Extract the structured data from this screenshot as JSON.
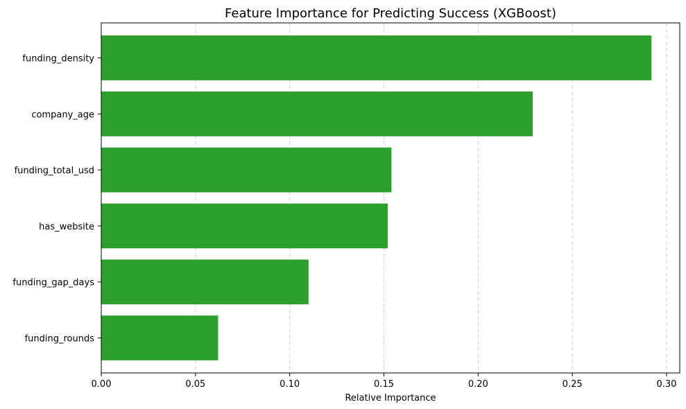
{
  "chart_data": {
    "type": "bar",
    "orientation": "horizontal",
    "title": "Feature Importance for Predicting Success (XGBoost)",
    "xlabel": "Relative Importance",
    "ylabel": "",
    "categories": [
      "funding_density",
      "company_age",
      "funding_total_usd",
      "has_website",
      "funding_gap_days",
      "funding_rounds"
    ],
    "values": [
      0.292,
      0.229,
      0.154,
      0.152,
      0.11,
      0.062
    ],
    "xlim": [
      0,
      0.307
    ],
    "xticks": [
      0.0,
      0.05,
      0.1,
      0.15,
      0.2,
      0.25,
      0.3
    ],
    "xtick_labels": [
      "0.00",
      "0.05",
      "0.10",
      "0.15",
      "0.20",
      "0.25",
      "0.30"
    ],
    "grid": "x",
    "bar_color": "#2ca02c",
    "grid_color": "#cccccc"
  }
}
